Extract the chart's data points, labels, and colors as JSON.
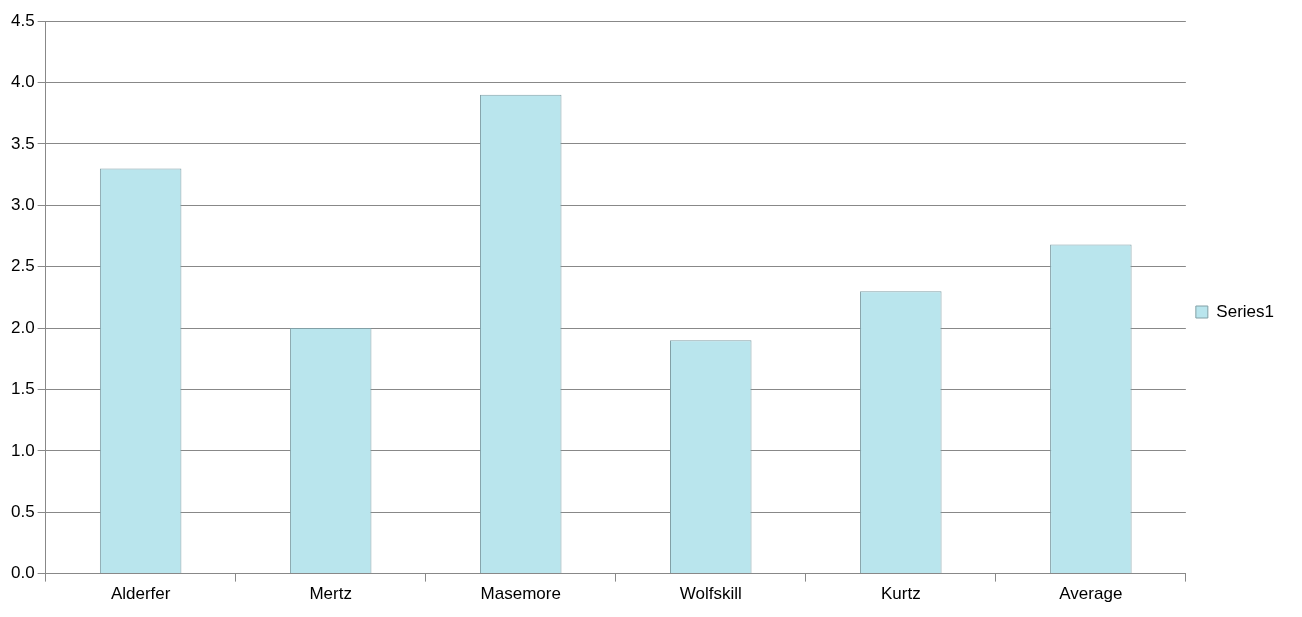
{
  "chart_data": {
    "type": "bar",
    "categories": [
      "Alderfer",
      "Mertz",
      "Masemore",
      "Wolfskill",
      "Kurtz",
      "Average"
    ],
    "series": [
      {
        "name": "Series1",
        "color": "#b9e5ed",
        "values": [
          3.3,
          2.0,
          3.9,
          1.9,
          2.3,
          2.68
        ]
      }
    ],
    "ylim": [
      0,
      4.5
    ],
    "yticks": [
      {
        "value": 0,
        "label": "0.0"
      },
      {
        "value": 0.5,
        "label": "0.5"
      },
      {
        "value": 1,
        "label": "1.0"
      },
      {
        "value": 1.5,
        "label": "1.5"
      },
      {
        "value": 2,
        "label": "2.0"
      },
      {
        "value": 2.5,
        "label": "2.5"
      },
      {
        "value": 3,
        "label": "3.0"
      },
      {
        "value": 3.5,
        "label": "3.5"
      },
      {
        "value": 4,
        "label": "4.0"
      },
      {
        "value": 4.5,
        "label": "4.5"
      }
    ],
    "grid": "y",
    "legend": "right"
  }
}
